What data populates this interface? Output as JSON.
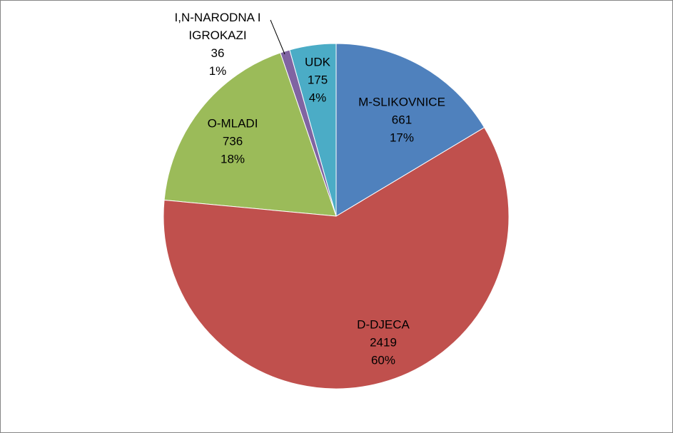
{
  "chart_data": {
    "type": "pie",
    "categories": [
      "M-SLIKOVNICE",
      "D-DJECA",
      "O-MLADI",
      "I,N-NARODNA I IGROKAZI",
      "UDK"
    ],
    "values": [
      661,
      2419,
      736,
      36,
      175
    ],
    "percent_labels": [
      "17%",
      "60%",
      "18%",
      "1%",
      "4%"
    ],
    "colors": [
      "#4f81bd",
      "#c0504d",
      "#9bbb59",
      "#8064a2",
      "#4bacc6"
    ]
  }
}
